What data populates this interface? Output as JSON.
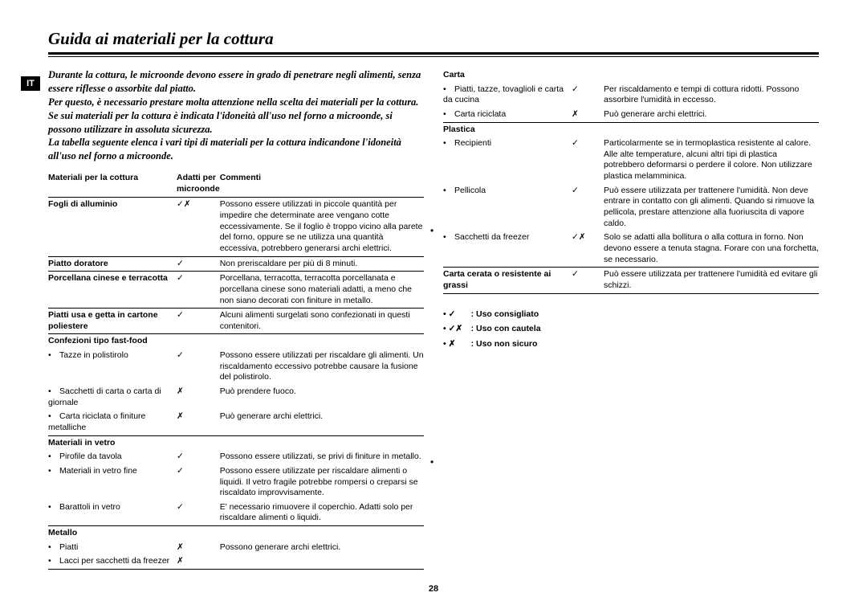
{
  "lang_tag": "IT",
  "title": "Guida ai materiali per la cottura",
  "intro": "Durante la cottura, le microonde devono essere in grado di penetrare negli alimenti, senza essere riflesse o assorbite dal piatto.\nPer questo, è necessario prestare molta attenzione nella scelta dei materiali per la cottura. Se sui materiali per la cottura è indicata l'idoneità all'uso nel forno a microonde, si possono utilizzare in assoluta sicurezza.\nLa tabella seguente elenca i vari tipi di materiali per la cottura indicandone l'idoneità all'uso nel forno a microonde.",
  "hdr": {
    "material": "Materiali per la cottura",
    "safe": "Adatti per microonde",
    "comments": "Commenti"
  },
  "page_number": "28",
  "legend": {
    "rec": {
      "sym": "✓",
      "txt": ": Uso consigliato"
    },
    "cau": {
      "sym": "✓✗",
      "txt": ": Uso con cautela"
    },
    "no": {
      "sym": "✗",
      "txt": ": Uso non sicuro"
    }
  },
  "left": [
    {
      "m": "Fogli di alluminio",
      "s": "✓✗",
      "c": "Possono essere utilizzati in piccole quantità per impedire che determinate aree vengano cotte eccessivamente. Se il foglio è troppo vicino alla parete del forno, oppure se ne utilizza una quantità eccessiva, potrebbero generarsi archi elettrici.",
      "bold": true,
      "sep": true
    },
    {
      "m": "Piatto doratore",
      "s": "✓",
      "c": "Non preriscaldare per più di 8 minuti.",
      "bold": true,
      "sep": true
    },
    {
      "m": "Porcellana cinese e terracotta",
      "s": "✓",
      "c": "Porcellana, terracotta, terracotta porcellanata e porcellana cinese sono materiali adatti, a meno che non siano decorati con finiture in metallo.",
      "bold": true,
      "sep": true
    },
    {
      "m": "Piatti usa e getta in cartone poliestere",
      "s": "✓",
      "c": "Alcuni alimenti surgelati sono confezionati in questi contenitori.",
      "bold": true,
      "sep": true
    },
    {
      "m": "Confezioni tipo fast-food",
      "s": "",
      "c": "",
      "bold": true,
      "sep": false
    },
    {
      "m": "Tazze in polistirolo",
      "s": "✓",
      "c": "Possono essere utilizzati per riscaldare gli alimenti. Un riscaldamento eccessivo potrebbe causare la fusione del polistirolo.",
      "bold": false,
      "sub": true,
      "sep": false
    },
    {
      "m": "Sacchetti di carta o carta di giornale",
      "s": "✗",
      "c": "Può prendere fuoco.",
      "bold": false,
      "sub": true,
      "sep": false
    },
    {
      "m": "Carta riciclata o finiture metalliche",
      "s": "✗",
      "c": "Può generare archi elettrici.",
      "bold": false,
      "sub": true,
      "sep": true
    },
    {
      "m": "Materiali in vetro",
      "s": "",
      "c": "",
      "bold": true,
      "sep": false
    },
    {
      "m": "Pirofile da tavola",
      "s": "✓",
      "c": "Possono essere utilizzati, se privi di finiture in metallo.",
      "bold": false,
      "sub": true,
      "sep": false
    },
    {
      "m": "Materiali in vetro fine",
      "s": "✓",
      "c": "Possono essere utilizzate per riscaldare alimenti o liquidi. Il vetro fragile potrebbe rompersi o creparsi se riscaldato improvvisamente.",
      "bold": false,
      "sub": true,
      "sep": false
    },
    {
      "m": "Barattoli in vetro",
      "s": "✓",
      "c": "E' necessario rimuovere il coperchio. Adatti solo per riscaldare alimenti o liquidi.",
      "bold": false,
      "sub": true,
      "sep": true
    },
    {
      "m": "Metallo",
      "s": "",
      "c": "",
      "bold": true,
      "sep": false
    },
    {
      "m": "Piatti",
      "s": "✗",
      "c": "Possono generare archi elettrici.",
      "bold": false,
      "sub": true,
      "sep": false
    },
    {
      "m": "Lacci per sacchetti da freezer",
      "s": "✗",
      "c": "",
      "bold": false,
      "sub": true,
      "sep": true
    }
  ],
  "right": [
    {
      "m": "Carta",
      "s": "",
      "c": "",
      "bold": true,
      "sep": false
    },
    {
      "m": "Piatti, tazze, tovaglioli e carta da cucina",
      "s": "✓",
      "c": "Per riscaldamento e tempi di cottura ridotti. Possono assorbire l'umidità in eccesso.",
      "bold": false,
      "sub": true,
      "sep": false
    },
    {
      "m": "Carta riciclata",
      "s": "✗",
      "c": "Può generare archi elettrici.",
      "bold": false,
      "sub": true,
      "sep": true
    },
    {
      "m": "Plastica",
      "s": "",
      "c": "",
      "bold": true,
      "sep": false
    },
    {
      "m": "Recipienti",
      "s": "✓",
      "c": "Particolarmente se in termoplastica resistente al calore. Alle alte temperature, alcuni altri tipi di plastica potrebbero deformarsi o perdere il colore. Non utilizzare plastica melamminica.",
      "bold": false,
      "sub": true,
      "sep": false
    },
    {
      "m": "Pellicola",
      "s": "✓",
      "c": "Può essere utilizzata per trattenere l'umidità. Non deve entrare in contatto con gli alimenti. Quando si rimuove la pellicola, prestare attenzione alla fuoriuscita di vapore caldo.",
      "bold": false,
      "sub": true,
      "sep": false
    },
    {
      "m": "Sacchetti da freezer",
      "s": "✓✗",
      "c": "Solo se adatti alla bollitura o alla cottura in forno. Non devono essere a tenuta stagna. Forare con una forchetta, se necessario.",
      "bold": false,
      "sub": true,
      "sep": true
    },
    {
      "m": "Carta cerata o resistente ai grassi",
      "s": "✓",
      "c": "Può essere utilizzata per trattenere l'umidità ed evitare gli schizzi.",
      "bold": true,
      "sep": true
    }
  ]
}
